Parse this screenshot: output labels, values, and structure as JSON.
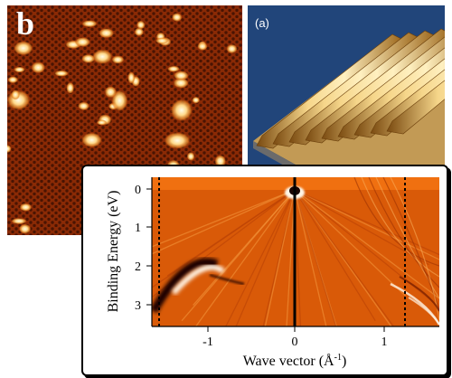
{
  "panels": {
    "stm": {
      "letter": "b",
      "colors": {
        "background": "#8a2a05",
        "lattice": "#4a1402",
        "blob_bright": "#fff3c4",
        "blob_mid": "#ffc46b"
      }
    },
    "surface": {
      "label": "(a)",
      "colors": {
        "background": "#21457a",
        "ridge_light": "#f6d68a",
        "ridge_dark": "#8f5a12"
      }
    },
    "arpes": {
      "ylabel": "Binding Energy (eV)",
      "xlabel_main": "Wave vector (",
      "xlabel_unit": "Å",
      "xlabel_exp": "-1",
      "xlabel_close": ")",
      "x_ticks": [
        "-1",
        "0",
        "1"
      ],
      "y_ticks": [
        "0",
        "1",
        "2",
        "3"
      ],
      "colors": {
        "background": "#e0640a",
        "dark_band": "#1a0500",
        "light_band": "#fff6e8"
      }
    }
  }
}
